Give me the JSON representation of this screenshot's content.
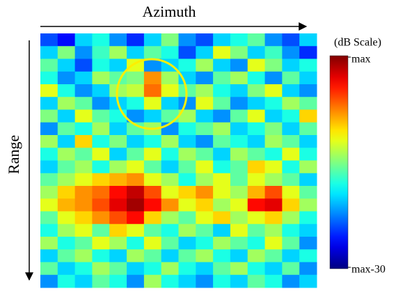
{
  "chart_data": {
    "type": "heatmap",
    "x_label": "Azimuth",
    "y_label": "Range",
    "colorbar_label": "(dB Scale)",
    "colormap": "jet",
    "clim": [
      -30,
      0
    ],
    "cticks": [
      {
        "value": 0,
        "label": "max"
      },
      {
        "value": -30,
        "label": "max-30"
      }
    ],
    "values": [
      [
        -24,
        -26,
        -20,
        -18,
        -22,
        -25,
        -20,
        -15,
        -22,
        -24,
        -20,
        -18,
        -16,
        -22,
        -24,
        -20
      ],
      [
        -20,
        -15,
        -22,
        -17,
        -14,
        -20,
        -16,
        -18,
        -24,
        -20,
        -12,
        -15,
        -20,
        -17,
        -22,
        -25
      ],
      [
        -16,
        -20,
        -24,
        -18,
        -20,
        -12,
        -22,
        -20,
        -18,
        -14,
        -20,
        -22,
        -12,
        -15,
        -20,
        -18
      ],
      [
        -18,
        -22,
        -20,
        -14,
        -16,
        -15,
        -8,
        -14,
        -20,
        -22,
        -16,
        -14,
        -18,
        -22,
        -16,
        -20
      ],
      [
        -12,
        -18,
        -22,
        -20,
        -14,
        -13,
        -7,
        -12,
        -16,
        -14,
        -18,
        -20,
        -15,
        -12,
        -20,
        -22
      ],
      [
        -20,
        -14,
        -16,
        -22,
        -20,
        -18,
        -12,
        -20,
        -22,
        -12,
        -16,
        -22,
        -20,
        -18,
        -14,
        -16
      ],
      [
        -15,
        -20,
        -12,
        -16,
        -18,
        -22,
        -20,
        -16,
        -14,
        -20,
        -22,
        -16,
        -12,
        -20,
        -18,
        -10
      ],
      [
        -22,
        -16,
        -18,
        -14,
        -20,
        -16,
        -14,
        -22,
        -18,
        -16,
        -14,
        -20,
        -18,
        -15,
        -20,
        -16
      ],
      [
        -14,
        -20,
        -10,
        -18,
        -15,
        -20,
        -18,
        -14,
        -20,
        -22,
        -16,
        -18,
        -20,
        -14,
        -16,
        -20
      ],
      [
        -18,
        -14,
        -16,
        -12,
        -20,
        -16,
        -12,
        -18,
        -14,
        -16,
        -20,
        -14,
        -16,
        -18,
        -12,
        -18
      ],
      [
        -20,
        -16,
        -14,
        -18,
        -14,
        -12,
        -16,
        -20,
        -16,
        -12,
        -18,
        -16,
        -10,
        -12,
        -18,
        -14
      ],
      [
        -16,
        -14,
        -12,
        -10,
        -9,
        -8,
        -12,
        -14,
        -18,
        -14,
        -12,
        -16,
        -12,
        -14,
        -16,
        -20
      ],
      [
        -14,
        -10,
        -8,
        -7,
        -4,
        -2,
        -6,
        -12,
        -10,
        -8,
        -12,
        -14,
        -9,
        -6,
        -12,
        -16
      ],
      [
        -12,
        -9,
        -8,
        -6,
        -3,
        -1,
        -4,
        -8,
        -12,
        -10,
        -14,
        -12,
        -4,
        -3,
        -10,
        -14
      ],
      [
        -16,
        -12,
        -10,
        -8,
        -6,
        -4,
        -10,
        -14,
        -16,
        -12,
        -10,
        -14,
        -12,
        -10,
        -14,
        -18
      ],
      [
        -18,
        -14,
        -12,
        -16,
        -10,
        -12,
        -16,
        -18,
        -14,
        -16,
        -20,
        -12,
        -16,
        -14,
        -18,
        -20
      ],
      [
        -14,
        -18,
        -16,
        -12,
        -14,
        -18,
        -12,
        -16,
        -20,
        -18,
        -14,
        -16,
        -18,
        -12,
        -16,
        -22
      ],
      [
        -20,
        -16,
        -14,
        -18,
        -20,
        -14,
        -16,
        -20,
        -16,
        -14,
        -18,
        -20,
        -14,
        -16,
        -20,
        -18
      ],
      [
        -16,
        -20,
        -18,
        -14,
        -16,
        -20,
        -18,
        -14,
        -18,
        -20,
        -16,
        -14,
        -18,
        -20,
        -16,
        -22
      ],
      [
        -22,
        -18,
        -20,
        -16,
        -18,
        -22,
        -14,
        -18,
        -20,
        -22,
        -18,
        -20,
        -16,
        -18,
        -22,
        -20
      ]
    ]
  }
}
